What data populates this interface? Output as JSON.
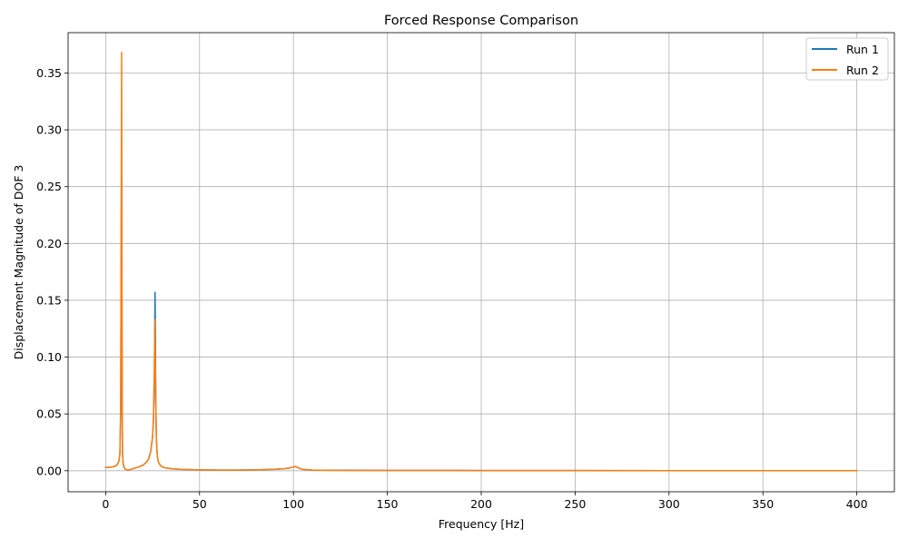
{
  "chart_data": {
    "type": "line",
    "title": "Forced Response Comparison",
    "xlabel": "Frequency [Hz]",
    "ylabel": "Displacement Magnitude of DOF 3",
    "xlim": [
      -20,
      420
    ],
    "ylim": [
      -0.0185,
      0.3855
    ],
    "xticks": [
      0,
      50,
      100,
      150,
      200,
      250,
      300,
      350,
      400
    ],
    "yticks": [
      0.0,
      0.05,
      0.1,
      0.15,
      0.2,
      0.25,
      0.3,
      0.35
    ],
    "xtick_labels": [
      "0",
      "50",
      "100",
      "150",
      "200",
      "250",
      "300",
      "350",
      "400"
    ],
    "ytick_labels": [
      "0.00",
      "0.05",
      "0.10",
      "0.15",
      "0.20",
      "0.25",
      "0.30",
      "0.35"
    ],
    "grid": true,
    "legend_position": "top-right",
    "series": [
      {
        "name": "Run 1",
        "color": "#1f77b4",
        "x": [
          0,
          2,
          4,
          5,
          6,
          7,
          7.6,
          8.0,
          8.3,
          8.5,
          8.6,
          8.8,
          9.0,
          9.3,
          10,
          11,
          12,
          14,
          16,
          18,
          20,
          22,
          23,
          24,
          25,
          25.5,
          26,
          26.3,
          26.5,
          26.7,
          27.0,
          27.3,
          27.6,
          28,
          29,
          30,
          32,
          35,
          40,
          45,
          50,
          60,
          70,
          80,
          90,
          95,
          98,
          100,
          101,
          102,
          103,
          105,
          110,
          120,
          150,
          200,
          250,
          300,
          350,
          400
        ],
        "y": [
          0.003,
          0.003,
          0.0035,
          0.004,
          0.005,
          0.008,
          0.015,
          0.05,
          0.2,
          0.26,
          0.2,
          0.05,
          0.015,
          0.006,
          0.002,
          0.001,
          0.0005,
          0.0015,
          0.0025,
          0.0035,
          0.005,
          0.008,
          0.011,
          0.017,
          0.03,
          0.045,
          0.09,
          0.157,
          0.12,
          0.06,
          0.03,
          0.018,
          0.012,
          0.008,
          0.005,
          0.0035,
          0.0025,
          0.0018,
          0.0012,
          0.001,
          0.0008,
          0.0006,
          0.0006,
          0.0008,
          0.0013,
          0.0018,
          0.0025,
          0.0032,
          0.0038,
          0.003,
          0.0022,
          0.0012,
          0.0006,
          0.0004,
          0.0003,
          0.0002,
          0.0002,
          0.0001,
          0.0001,
          0.0001
        ]
      },
      {
        "name": "Run 2",
        "color": "#ff7f0e",
        "x": [
          0,
          2,
          4,
          5,
          6,
          7,
          7.6,
          8.0,
          8.3,
          8.5,
          8.6,
          8.8,
          9.0,
          9.3,
          10,
          11,
          12,
          14,
          16,
          18,
          20,
          22,
          23,
          24,
          25,
          25.5,
          25.9,
          26.2,
          26.5,
          26.8,
          27.0,
          27.3,
          27.6,
          28,
          29,
          30,
          32,
          35,
          40,
          45,
          50,
          60,
          70,
          80,
          90,
          95,
          98,
          100,
          101,
          102,
          103,
          105,
          110,
          120,
          150,
          200,
          250,
          300,
          350,
          400
        ],
        "y": [
          0.003,
          0.003,
          0.0035,
          0.004,
          0.005,
          0.008,
          0.015,
          0.06,
          0.25,
          0.368,
          0.25,
          0.06,
          0.015,
          0.006,
          0.002,
          0.001,
          0.0005,
          0.0015,
          0.0025,
          0.0035,
          0.005,
          0.008,
          0.011,
          0.017,
          0.03,
          0.05,
          0.09,
          0.133,
          0.09,
          0.05,
          0.03,
          0.018,
          0.012,
          0.008,
          0.005,
          0.0035,
          0.0025,
          0.0018,
          0.0012,
          0.001,
          0.0008,
          0.0006,
          0.0006,
          0.0008,
          0.0013,
          0.0018,
          0.0025,
          0.0032,
          0.0038,
          0.003,
          0.0022,
          0.0012,
          0.0006,
          0.0004,
          0.0003,
          0.0002,
          0.0002,
          0.0001,
          0.0001,
          0.0001
        ]
      }
    ]
  }
}
